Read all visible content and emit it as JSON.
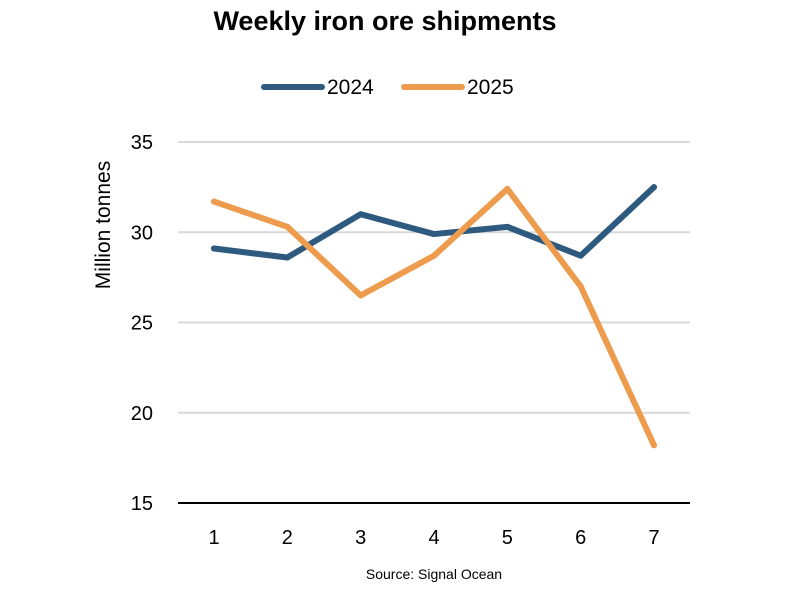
{
  "chart_data": {
    "type": "line",
    "title": "Weekly iron ore shipments",
    "xlabel": "",
    "ylabel": "Million tonnes",
    "categories": [
      "1",
      "2",
      "3",
      "4",
      "5",
      "6",
      "7"
    ],
    "ylim": [
      15,
      35
    ],
    "yticks": [
      15,
      20,
      25,
      30,
      35
    ],
    "grid": true,
    "legend_position": "top",
    "series": [
      {
        "name": "2024",
        "color": "#2e5a7f",
        "values": [
          29.1,
          28.6,
          31.0,
          29.9,
          30.3,
          28.7,
          32.5
        ]
      },
      {
        "name": "2025",
        "color": "#ed9b4c",
        "values": [
          31.7,
          30.3,
          26.5,
          28.7,
          32.4,
          27.0,
          18.2
        ]
      }
    ],
    "source": "Source: Signal Ocean"
  }
}
